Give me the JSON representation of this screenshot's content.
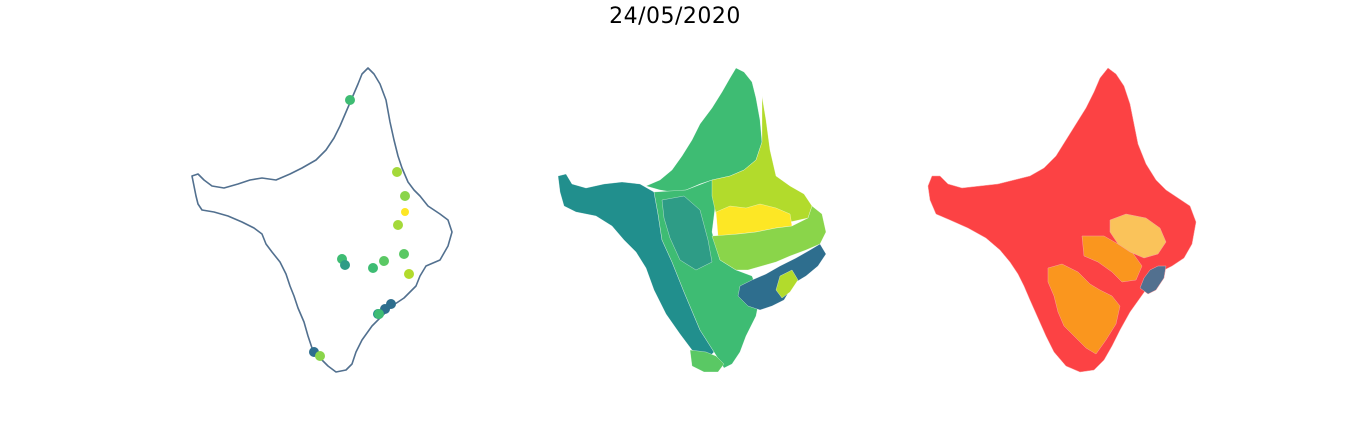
{
  "title": "24/05/2020",
  "colors": {
    "outline": "#52708f",
    "background": "#ffffff",
    "viridis_dark": "#2e6e8e",
    "viridis_teal": "#218f8d",
    "viridis_green": "#3ebc73",
    "viridis_lightgreen": "#8ad54a",
    "viridis_lime": "#b2db2c",
    "viridis_yellow": "#fde725",
    "risk_red": "#fc4244",
    "risk_orange": "#fa961e",
    "risk_lightorange": "#fac35a",
    "risk_slate": "#52708f"
  },
  "panels": [
    {
      "name": "points-map",
      "type": "point-map"
    },
    {
      "name": "choropleth-viridis",
      "type": "choropleth"
    },
    {
      "name": "choropleth-risk",
      "type": "choropleth"
    }
  ],
  "points": [
    {
      "color": "#3ebc73"
    },
    {
      "color": "#a4d93a"
    },
    {
      "color": "#8ad54a"
    },
    {
      "color": "#fde725"
    },
    {
      "color": "#a4d93a"
    },
    {
      "color": "#3ebc73"
    },
    {
      "color": "#2e9c86"
    },
    {
      "color": "#3ebc73"
    },
    {
      "color": "#5ac864"
    },
    {
      "color": "#5ac864"
    },
    {
      "color": "#b2db2c"
    },
    {
      "color": "#2e6e8e"
    },
    {
      "color": "#2e6e8e"
    },
    {
      "color": "#218f8d"
    },
    {
      "color": "#3ebc73"
    },
    {
      "color": "#2e6e8e"
    },
    {
      "color": "#8ad54a"
    }
  ]
}
